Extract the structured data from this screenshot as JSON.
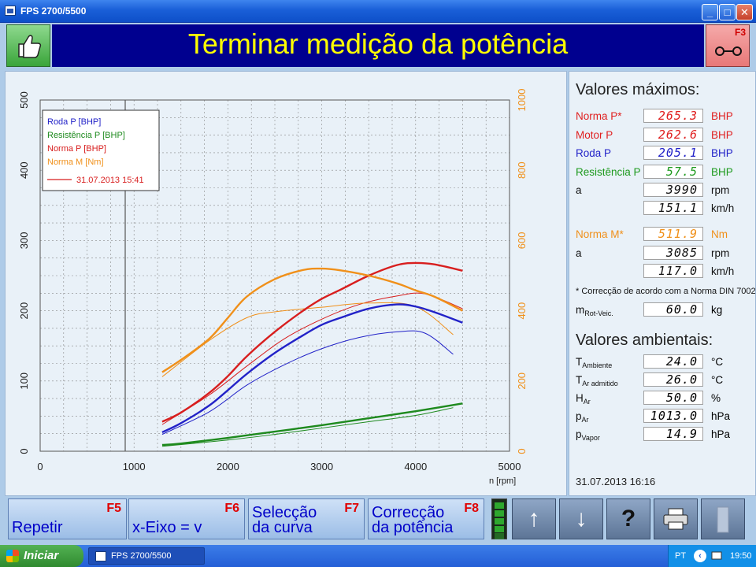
{
  "window": {
    "title": "FPS 2700/5500",
    "min_glyph": "_",
    "max_glyph": "□",
    "close_glyph": "✕"
  },
  "header": {
    "title": "Terminar medição da potência",
    "f3_key": "F3"
  },
  "chart_data": {
    "type": "line",
    "xlabel": "n [rpm]",
    "xlim": [
      0,
      5000
    ],
    "ylim_left": [
      0,
      500
    ],
    "ylim_right": [
      0,
      1000
    ],
    "x_ticks": [
      0,
      1000,
      2000,
      3000,
      4000,
      5000
    ],
    "y_left_ticks": [
      0,
      100,
      200,
      300,
      400,
      500
    ],
    "y_right_ticks": [
      0,
      200,
      400,
      600,
      800,
      1000
    ],
    "grid": true,
    "legend_position": "top-left",
    "legend": [
      "Roda P [BHP]",
      "Resistência P [BHP]",
      "Norma P [BHP]",
      "Norma M [Nm]"
    ],
    "legend_run_label": "31.07.2013 15:41",
    "series": [
      {
        "name": "Roda P [BHP]",
        "color": "#2222c8",
        "axis": "left",
        "width": 2.4,
        "x": [
          1300,
          1500,
          1800,
          2000,
          2200,
          2500,
          2800,
          3000,
          3200,
          3500,
          3800,
          4000,
          4200,
          4500
        ],
        "y": [
          27,
          40,
          65,
          87,
          110,
          140,
          165,
          180,
          190,
          203,
          209,
          206,
          198,
          183
        ]
      },
      {
        "name": "Resistência P [BHP]",
        "color": "#1e8a1e",
        "axis": "left",
        "width": 2.4,
        "x": [
          1300,
          1500,
          2000,
          2500,
          3000,
          3500,
          4000,
          4500
        ],
        "y": [
          9,
          11,
          19,
          28,
          37,
          47,
          57,
          68
        ]
      },
      {
        "name": "Norma P [BHP]",
        "color": "#d81e1e",
        "axis": "left",
        "width": 2.4,
        "x": [
          1300,
          1500,
          1800,
          2000,
          2200,
          2500,
          2800,
          3000,
          3200,
          3500,
          3800,
          4000,
          4200,
          4500
        ],
        "y": [
          42,
          55,
          83,
          107,
          135,
          170,
          200,
          217,
          230,
          250,
          265,
          268,
          266,
          257
        ]
      },
      {
        "name": "Norma M [Nm]",
        "color": "#f0901a",
        "axis": "right",
        "width": 2.4,
        "x": [
          1300,
          1500,
          1800,
          2000,
          2200,
          2500,
          2800,
          3000,
          3200,
          3500,
          3800,
          4000,
          4200,
          4500
        ],
        "y": [
          225,
          260,
          320,
          380,
          440,
          490,
          516,
          520,
          515,
          500,
          478,
          458,
          440,
          400
        ]
      },
      {
        "name": "31.07.2013 15:41",
        "color": "#2222c8",
        "axis": "left",
        "width": 1,
        "x": [
          1300,
          1800,
          2200,
          2600,
          3000,
          3400,
          3800,
          4100,
          4400
        ],
        "y": [
          24,
          56,
          94,
          123,
          146,
          162,
          170,
          168,
          138
        ]
      },
      {
        "name": "31.07.2013 15:41",
        "color": "#1e8a1e",
        "axis": "left",
        "width": 1,
        "x": [
          1300,
          2000,
          2500,
          3000,
          3500,
          4000,
          4400
        ],
        "y": [
          7,
          16,
          24,
          33,
          42,
          51,
          62
        ]
      },
      {
        "name": "31.07.2013 15:41",
        "color": "#d81e1e",
        "axis": "left",
        "width": 1,
        "x": [
          1300,
          1800,
          2200,
          2600,
          3000,
          3400,
          3800,
          4100,
          4500
        ],
        "y": [
          38,
          80,
          121,
          160,
          188,
          209,
          221,
          224,
          203
        ]
      },
      {
        "name": "31.07.2013 15:41",
        "color": "#f0901a",
        "axis": "right",
        "width": 1,
        "x": [
          1300,
          1800,
          2200,
          2500,
          3000,
          3500,
          4000,
          4400
        ],
        "y": [
          212,
          315,
          380,
          397,
          410,
          422,
          412,
          332
        ]
      }
    ]
  },
  "results": {
    "heading_max": "Valores máximos:",
    "rows": [
      {
        "label": "Norma P*",
        "value": "265.3",
        "unit": "BHP",
        "color": "#e02020"
      },
      {
        "label": "Motor P",
        "value": "262.6",
        "unit": "BHP",
        "color": "#e02020"
      },
      {
        "label": "Roda P",
        "value": "205.1",
        "unit": "BHP",
        "color": "#2222c8"
      },
      {
        "label": "Resistência P",
        "value": "57.5",
        "unit": "BHP",
        "color": "#1e9a1e"
      },
      {
        "label": "a",
        "value": "3990",
        "unit": "rpm",
        "color": "#111111"
      },
      {
        "label": "",
        "value": "151.1",
        "unit": "km/h",
        "color": "#111111"
      },
      {
        "label": "Norma M*",
        "value": "511.9",
        "unit": "Nm",
        "color": "#f0901a"
      },
      {
        "label": "a",
        "value": "3085",
        "unit": "rpm",
        "color": "#111111"
      },
      {
        "label": "",
        "value": "117.0",
        "unit": "km/h",
        "color": "#111111"
      }
    ],
    "note": "* Correcção de acordo com a Norma DIN 70020",
    "mass": {
      "label_main": "m",
      "label_sub": "Rot-Veic.",
      "value": "60.0",
      "unit": "kg"
    },
    "heading_env": "Valores ambientais:",
    "env": [
      {
        "main": "T",
        "sub": "Ambiente",
        "value": "24.0",
        "unit": "°C"
      },
      {
        "main": "T",
        "sub": "Ar admitido",
        "value": "26.0",
        "unit": "°C"
      },
      {
        "main": "H",
        "sub": "Ar",
        "value": "50.0",
        "unit": "%"
      },
      {
        "main": "p",
        "sub": "Ar",
        "value": "1013.0",
        "unit": "hPa"
      },
      {
        "main": "p",
        "sub": "Vapor",
        "value": "14.9",
        "unit": "hPa"
      }
    ],
    "datetime": "31.07.2013   16:16"
  },
  "buttons": {
    "repetir": {
      "key": "F5",
      "line1": "Repetir",
      "line2": ""
    },
    "xeixo": {
      "key": "F6",
      "line1": "x-Eixo = v",
      "line2": ""
    },
    "seleccao": {
      "key": "F7",
      "line1": "Selecção",
      "line2": "da curva"
    },
    "correccao": {
      "key": "F8",
      "line1": "Correcção",
      "line2": "da potência"
    },
    "up_glyph": "↑",
    "down_glyph": "↓",
    "help_glyph": "?"
  },
  "taskbar": {
    "start": "Iniciar",
    "task": "FPS 2700/5500",
    "lang": "PT",
    "time": "19:50",
    "tray_arrow": "‹"
  },
  "colors": {
    "title_band": "#00008f",
    "title_text": "#ffff00"
  }
}
